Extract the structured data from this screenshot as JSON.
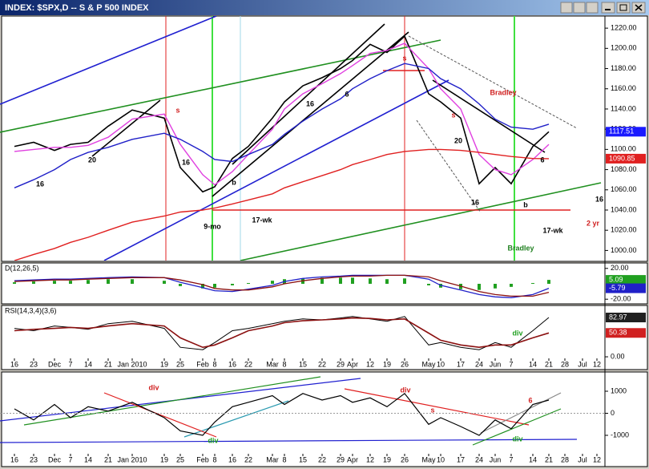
{
  "chart_data": [
    {
      "type": "line",
      "title": "INDEX: $SPX,D -- S & P 500 INDEX",
      "categories": [
        "16",
        "23",
        "Dec",
        "7",
        "14",
        "21",
        "Jan 2010",
        "19",
        "25",
        "Feb",
        "8",
        "16",
        "22",
        "Mar",
        "8",
        "15",
        "22",
        "29",
        "Apr",
        "12",
        "19",
        "26",
        "May",
        "10",
        "17",
        "24",
        "Jun",
        "7",
        "14",
        "21",
        "28",
        "Jul",
        "12"
      ],
      "ylim": [
        990,
        1232
      ],
      "yticks": [
        {
          "value": 1220,
          "label": "1220.00"
        },
        {
          "value": 1200,
          "label": "1200.00"
        },
        {
          "value": 1180,
          "label": "1180.00"
        },
        {
          "value": 1160,
          "label": "1160.00"
        },
        {
          "value": 1140,
          "label": "1140.00"
        },
        {
          "value": 1120,
          "label": "1120.00"
        },
        {
          "value": 1100,
          "label": "1100.00"
        },
        {
          "value": 1080,
          "label": "1080.00"
        },
        {
          "value": 1060,
          "label": "1060.00"
        },
        {
          "value": 1040,
          "label": "1040.00"
        },
        {
          "value": 1020,
          "label": "1020.00"
        },
        {
          "value": 1000,
          "label": "1000.00"
        }
      ],
      "series": [
        {
          "color": "#000000",
          "width": 1.6,
          "tag_last": true,
          "tag_color": "#1a1aff",
          "values": [
            1103,
            1107,
            1099,
            1105,
            1107,
            1123,
            1139,
            1131,
            1082,
            1058,
            1063,
            1091,
            1103,
            1131,
            1147,
            1163,
            1171,
            1180,
            1188,
            1204,
            1196,
            1212,
            1155,
            1147,
            1131,
            1066,
            1082,
            1066,
            1103,
            1117.51,
            null,
            null,
            null
          ]
        },
        {
          "color": "#e040e0",
          "width": 1.4,
          "values": [
            1098,
            1100,
            1102,
            1102,
            1104,
            1112,
            1130,
            1135,
            1105,
            1075,
            1065,
            1078,
            1095,
            1120,
            1140,
            1155,
            1165,
            1175,
            1183,
            1195,
            1198,
            1205,
            1180,
            1160,
            1140,
            1095,
            1080,
            1075,
            1090,
            1105,
            null,
            null,
            null
          ]
        },
        {
          "color": "#2020c8",
          "width": 1.4,
          "values": [
            1062,
            1070,
            1080,
            1090,
            1097,
            1102,
            1110,
            1116,
            1110,
            1098,
            1090,
            1088,
            1095,
            1105,
            1115,
            1128,
            1140,
            1150,
            1160,
            1170,
            1178,
            1185,
            1180,
            1170,
            1160,
            1145,
            1130,
            1122,
            1120,
            1125,
            null,
            null,
            null
          ]
        },
        {
          "color": "#e02020",
          "width": 1.4,
          "tag_last": true,
          "tag_color": "#e02020",
          "values": [
            990,
            996,
            1002,
            1008,
            1013,
            1020,
            1028,
            1034,
            1038,
            1040,
            1042,
            1046,
            1050,
            1056,
            1062,
            1068,
            1074,
            1080,
            1085,
            1090,
            1095,
            1098,
            1100,
            1100,
            1099,
            1097,
            1095,
            1093,
            1091,
            1090.85,
            null,
            null,
            null
          ]
        }
      ],
      "annotations": [
        {
          "text": "Bradley",
          "color": "#d02020"
        },
        {
          "text": "Bradley",
          "color": "#208020"
        },
        {
          "text": "9-mo",
          "color": "#000000"
        },
        {
          "text": "17-wk",
          "color": "#000000"
        },
        {
          "text": "17-wk",
          "color": "#000000"
        },
        {
          "text": "2 yr",
          "color": "#d02020"
        },
        {
          "text": "16",
          "color": "#000000"
        },
        {
          "text": "20",
          "color": "#000000"
        },
        {
          "text": "16",
          "color": "#000000"
        },
        {
          "text": "16",
          "color": "#000000"
        },
        {
          "text": "6",
          "color": "#000000"
        },
        {
          "text": "20",
          "color": "#000000"
        },
        {
          "text": "16",
          "color": "#000000"
        },
        {
          "text": "6",
          "color": "#000000"
        },
        {
          "text": "b",
          "color": "#000000"
        },
        {
          "text": "b",
          "color": "#000000"
        },
        {
          "text": "s",
          "color": "#d02020"
        },
        {
          "text": "s",
          "color": "#d02020"
        },
        {
          "text": "s",
          "color": "#d02020"
        },
        {
          "text": "16",
          "color": "#000000"
        }
      ]
    },
    {
      "type": "line",
      "title": "D(12,26,5)",
      "ylim": [
        -25,
        25
      ],
      "yticks": [
        {
          "value": 20,
          "label": "20.00"
        },
        {
          "value": -20,
          "label": "-20.00"
        }
      ],
      "series": [
        {
          "color": "#20a020",
          "style": "bar",
          "tag_last": true,
          "tag_color": "#20a020",
          "values": [
            2,
            3,
            4,
            4,
            5,
            6,
            6,
            4,
            -3,
            -6,
            -5,
            -2,
            1,
            4,
            6,
            7,
            8,
            8,
            8,
            7,
            6,
            7,
            -2,
            -5,
            -7,
            -8,
            -6,
            -4,
            1,
            5.09,
            null,
            null,
            null
          ]
        },
        {
          "color": "#2020c8",
          "width": 1.3,
          "tag_last": true,
          "tag_color": "#2020c8",
          "values": [
            4,
            5,
            6,
            6,
            7,
            8,
            9,
            8,
            2,
            -5,
            -9,
            -10,
            -7,
            -2,
            3,
            7,
            9,
            10,
            11,
            11,
            11,
            11,
            6,
            -2,
            -8,
            -14,
            -17,
            -18,
            -14,
            -5.79,
            null,
            null,
            null
          ]
        },
        {
          "color": "#8b1010",
          "width": 1.3,
          "values": [
            3,
            4,
            5,
            5,
            6,
            7,
            8,
            8,
            5,
            -1,
            -6,
            -8,
            -8,
            -4,
            0,
            4,
            7,
            9,
            10,
            10,
            11,
            11,
            9,
            4,
            -3,
            -10,
            -14,
            -16,
            -16,
            -11,
            null,
            null,
            null
          ]
        }
      ]
    },
    {
      "type": "line",
      "title": "RSI(14,3,4)(3,6)",
      "ylim": [
        -5,
        105
      ],
      "yticks": [
        {
          "value": 0,
          "label": "0.00"
        }
      ],
      "x_axis": true,
      "series": [
        {
          "color": "#000000",
          "width": 1,
          "tag_last": true,
          "tag_color": "#202020",
          "values": [
            60,
            55,
            65,
            62,
            58,
            70,
            75,
            60,
            20,
            15,
            30,
            55,
            60,
            70,
            75,
            80,
            78,
            82,
            85,
            80,
            75,
            85,
            25,
            30,
            20,
            15,
            30,
            20,
            55,
            82.97,
            null,
            null,
            null
          ]
        },
        {
          "color": "#8b1010",
          "width": 1.6,
          "tag_last": true,
          "tag_color": "#d02020",
          "values": [
            55,
            58,
            60,
            62,
            60,
            65,
            70,
            65,
            40,
            20,
            25,
            40,
            55,
            65,
            72,
            76,
            78,
            80,
            82,
            81,
            78,
            80,
            50,
            35,
            25,
            20,
            25,
            25,
            40,
            50.38,
            null,
            null,
            null
          ]
        }
      ],
      "annotations": [
        {
          "text": "div",
          "color": "#20a020"
        }
      ]
    },
    {
      "type": "line",
      "ylim": [
        -1800,
        1800
      ],
      "yticks": [
        1000,
        0,
        -1000
      ],
      "x_axis": true,
      "series": [
        {
          "color": "#000000",
          "width": 1.2,
          "values": [
            200,
            -300,
            400,
            -200,
            300,
            100,
            500,
            -200,
            -800,
            -1000,
            -400,
            300,
            500,
            800,
            400,
            900,
            600,
            800,
            500,
            700,
            300,
            900,
            -500,
            -200,
            -600,
            -1000,
            -300,
            -700,
            400,
            600,
            null,
            null,
            null
          ]
        }
      ],
      "annotations": [
        {
          "text": "div",
          "color": "#d02020"
        },
        {
          "text": "div",
          "color": "#d02020"
        },
        {
          "text": "div",
          "color": "#20a020"
        },
        {
          "text": "div",
          "color": "#20a020"
        },
        {
          "text": "s",
          "color": "#d02020"
        },
        {
          "text": "6",
          "color": "#d02020"
        }
      ]
    }
  ]
}
